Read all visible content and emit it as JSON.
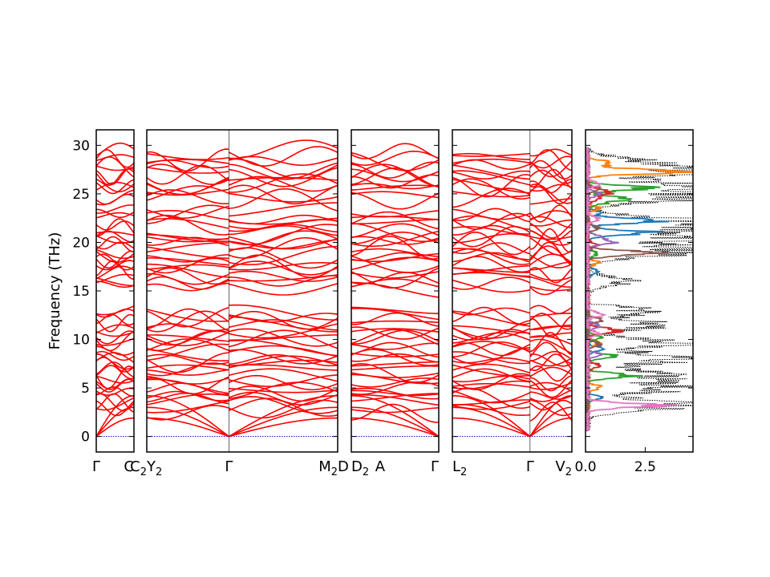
{
  "chart_data": {
    "type": "line",
    "ylabel": "Frequency (THz)",
    "ylim": [
      -1.6,
      31.6
    ],
    "yticks": [
      0,
      5,
      10,
      15,
      20,
      25,
      30
    ],
    "band_color": "#ff0000",
    "zero_line_color": "#0000cc",
    "band_panels": [
      {
        "id": "p1",
        "segments": [
          [
            0,
            1
          ]
        ],
        "labels": [
          {
            "pos": 0,
            "text": "Γ"
          },
          {
            "pos": 1,
            "text": "C",
            "anchor": "end"
          }
        ],
        "band_count": 40
      },
      {
        "id": "p2",
        "segments": [
          [
            0,
            0.43
          ],
          [
            0.43,
            1
          ]
        ],
        "labels": [
          {
            "pos": 0,
            "text": "C",
            "sub": "2",
            "anchor": "end"
          },
          {
            "pos": 0,
            "text": "Y",
            "sub": "2",
            "anchor": "start"
          },
          {
            "pos": 0.43,
            "text": "Γ"
          },
          {
            "pos": 1,
            "text": "M",
            "sub": "2",
            "anchor": "end"
          },
          {
            "pos": 1,
            "text": "D",
            "anchor": "start"
          }
        ],
        "band_count": 40
      },
      {
        "id": "p3",
        "segments": [
          [
            0,
            1
          ]
        ],
        "labels": [
          {
            "pos": 0,
            "text": "D",
            "sub": "2",
            "anchor": "start"
          },
          {
            "pos": 0.33,
            "text": "A"
          },
          {
            "pos": 1,
            "text": "Γ",
            "anchor": "end"
          }
        ],
        "band_count": 40
      },
      {
        "id": "p4",
        "segments": [
          [
            0,
            0.65
          ],
          [
            0.65,
            1
          ]
        ],
        "labels": [
          {
            "pos": 0,
            "text": "L",
            "sub": "2",
            "anchor": "start"
          },
          {
            "pos": 0.65,
            "text": "Γ"
          },
          {
            "pos": 1,
            "text": "V",
            "sub": "2",
            "anchor": "end"
          }
        ],
        "band_count": 40
      }
    ],
    "dos_panel": {
      "xlim": [
        0,
        4.5
      ],
      "xticks": [
        {
          "value": 0,
          "label": "0.0"
        },
        {
          "value": 2.5,
          "label": "2.5"
        }
      ],
      "total_style": "dotted",
      "total_color": "#000000",
      "partial_colors": [
        "#1f77b4",
        "#ff7f0e",
        "#2ca02c",
        "#d62728",
        "#9467bd",
        "#8c564b",
        "#e377c2"
      ],
      "peaks_total": [
        {
          "f": 3.2,
          "h": 4.2
        },
        {
          "f": 5.0,
          "h": 3.5
        },
        {
          "f": 6.3,
          "h": 3.2
        },
        {
          "f": 8.0,
          "h": 3.8
        },
        {
          "f": 9.6,
          "h": 3.3
        },
        {
          "f": 11.5,
          "h": 3.0
        },
        {
          "f": 13.0,
          "h": 2.2
        },
        {
          "f": 16.0,
          "h": 1.6
        },
        {
          "f": 19.0,
          "h": 4.3
        },
        {
          "f": 20.3,
          "h": 3.2
        },
        {
          "f": 21.4,
          "h": 4.1
        },
        {
          "f": 22.2,
          "h": 3.8
        },
        {
          "f": 24.6,
          "h": 4.0
        },
        {
          "f": 25.7,
          "h": 4.2
        },
        {
          "f": 27.3,
          "h": 3.9
        },
        {
          "f": 28.3,
          "h": 2.0
        }
      ],
      "peaks_partial": [
        {
          "series": 6,
          "f": 3.2,
          "h": 3.0
        },
        {
          "series": 2,
          "f": 6.3,
          "h": 1.3
        },
        {
          "series": 2,
          "f": 8.3,
          "h": 1.1
        },
        {
          "series": 0,
          "f": 21.0,
          "h": 2.9
        },
        {
          "series": 0,
          "f": 22.2,
          "h": 3.0
        },
        {
          "series": 5,
          "f": 18.9,
          "h": 3.0
        },
        {
          "series": 2,
          "f": 24.5,
          "h": 1.6
        },
        {
          "series": 2,
          "f": 25.6,
          "h": 2.6
        },
        {
          "series": 3,
          "f": 25.2,
          "h": 1.1
        },
        {
          "series": 1,
          "f": 27.3,
          "h": 3.9
        },
        {
          "series": 1,
          "f": 28.2,
          "h": 1.0
        },
        {
          "series": 4,
          "f": 20.0,
          "h": 1.1
        },
        {
          "series": 3,
          "f": 11.0,
          "h": 0.9
        }
      ]
    }
  }
}
